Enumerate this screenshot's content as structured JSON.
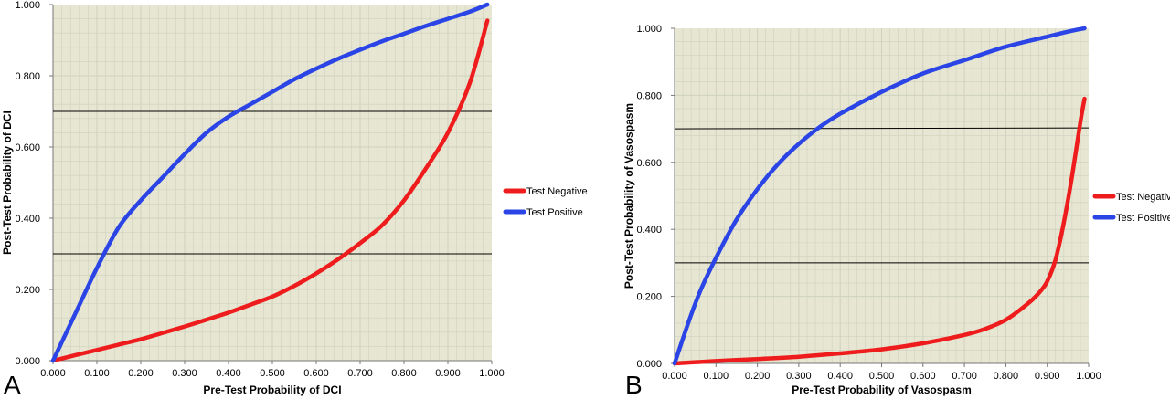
{
  "colors": {
    "plot_bg": "#e6e6d2",
    "grid": "#cfd1bf",
    "test_negative": "#ee1c1c",
    "test_positive": "#2b44e6",
    "threshold": "#000000"
  },
  "chart_data": [
    {
      "type": "line",
      "panel_label": "A",
      "xlabel": "Pre-Test Probability of DCI",
      "ylabel": "Post-Test Probability of DCI",
      "xlim": [
        0,
        1
      ],
      "ylim": [
        0,
        1
      ],
      "x_ticks": [
        "0.000",
        "0.100",
        "0.200",
        "0.300",
        "0.400",
        "0.500",
        "0.600",
        "0.700",
        "0.800",
        "0.900",
        "1.000"
      ],
      "y_ticks": [
        "0.000",
        "0.200",
        "0.400",
        "0.600",
        "0.800",
        "1.000"
      ],
      "grid": true,
      "legend_position": "right",
      "thresholds": [
        0.3,
        0.7
      ],
      "series": [
        {
          "name": "Test Negative",
          "x": [
            0.0,
            0.05,
            0.1,
            0.15,
            0.2,
            0.25,
            0.3,
            0.35,
            0.4,
            0.45,
            0.5,
            0.55,
            0.6,
            0.65,
            0.7,
            0.75,
            0.8,
            0.85,
            0.9,
            0.95,
            0.99
          ],
          "y": [
            0.0,
            0.015,
            0.03,
            0.045,
            0.06,
            0.078,
            0.096,
            0.115,
            0.135,
            0.157,
            0.18,
            0.21,
            0.245,
            0.285,
            0.33,
            0.38,
            0.45,
            0.54,
            0.64,
            0.78,
            0.955
          ]
        },
        {
          "name": "Test Positive",
          "x": [
            0.0,
            0.05,
            0.1,
            0.15,
            0.2,
            0.25,
            0.3,
            0.35,
            0.4,
            0.45,
            0.5,
            0.55,
            0.6,
            0.65,
            0.7,
            0.75,
            0.8,
            0.85,
            0.9,
            0.95,
            0.99
          ],
          "y": [
            0.0,
            0.13,
            0.26,
            0.375,
            0.45,
            0.515,
            0.58,
            0.64,
            0.685,
            0.72,
            0.755,
            0.79,
            0.82,
            0.848,
            0.873,
            0.897,
            0.918,
            0.94,
            0.96,
            0.98,
            1.0
          ]
        }
      ]
    },
    {
      "type": "line",
      "panel_label": "B",
      "xlabel": "Pre-Test Probability of Vasospasm",
      "ylabel": "Post-Test Probability of Vasospasm",
      "xlim": [
        0,
        1
      ],
      "ylim": [
        0,
        1
      ],
      "x_ticks": [
        "0.000",
        "0.100",
        "0.200",
        "0.300",
        "0.400",
        "0.500",
        "0.600",
        "0.700",
        "0.800",
        "0.900",
        "1.000"
      ],
      "y_ticks": [
        "0.000",
        "0.200",
        "0.400",
        "0.600",
        "0.800",
        "1.000"
      ],
      "grid": true,
      "legend_position": "right",
      "thresholds": [
        0.3,
        0.7
      ],
      "series": [
        {
          "name": "Test Negative",
          "x": [
            0.0,
            0.1,
            0.2,
            0.3,
            0.4,
            0.5,
            0.6,
            0.7,
            0.75,
            0.8,
            0.85,
            0.88,
            0.9,
            0.92,
            0.94,
            0.96,
            0.98,
            0.99
          ],
          "y": [
            0.0,
            0.007,
            0.013,
            0.02,
            0.03,
            0.042,
            0.06,
            0.085,
            0.103,
            0.13,
            0.175,
            0.21,
            0.245,
            0.31,
            0.42,
            0.56,
            0.72,
            0.79
          ]
        },
        {
          "name": "Test Positive",
          "x": [
            0.0,
            0.03,
            0.06,
            0.1,
            0.15,
            0.2,
            0.25,
            0.3,
            0.35,
            0.4,
            0.5,
            0.6,
            0.7,
            0.8,
            0.9,
            0.95,
            0.99
          ],
          "y": [
            0.0,
            0.11,
            0.21,
            0.315,
            0.43,
            0.52,
            0.595,
            0.655,
            0.705,
            0.745,
            0.81,
            0.865,
            0.905,
            0.945,
            0.975,
            0.99,
            1.0
          ]
        }
      ]
    }
  ]
}
